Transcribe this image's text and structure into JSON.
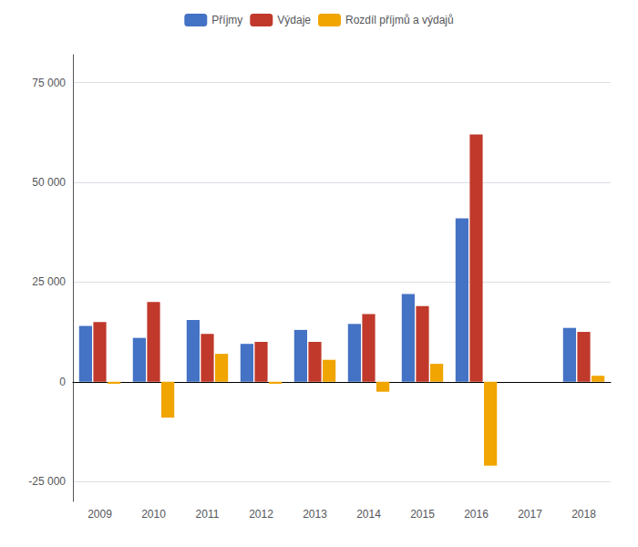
{
  "chart_data": {
    "type": "bar",
    "categories": [
      "2009",
      "2010",
      "2011",
      "2012",
      "2013",
      "2014",
      "2015",
      "2016",
      "2017",
      "2018"
    ],
    "series": [
      {
        "name": "Příjmy",
        "color": "#4472C4",
        "values": [
          14000,
          11000,
          15500,
          9500,
          13000,
          14500,
          22000,
          41000,
          0,
          13500
        ]
      },
      {
        "name": "Výdaje",
        "color": "#C0392B",
        "values": [
          15000,
          20000,
          12000,
          10000,
          10000,
          17000,
          19000,
          62000,
          0,
          12500
        ]
      },
      {
        "name": "Rozdíl příjmů a výdajů",
        "color": "#F0A500",
        "values": [
          -500,
          -9000,
          7000,
          -500,
          5500,
          -2500,
          4500,
          -21000,
          0,
          1500
        ]
      }
    ],
    "ylim": [
      -30000,
      82000
    ],
    "yticks": [
      {
        "value": -25000,
        "label": "-25 000"
      },
      0,
      {
        "value": 25000,
        "label": "25 000"
      },
      {
        "value": 50000,
        "label": "50 000"
      },
      {
        "value": 75000,
        "label": "75 000"
      }
    ],
    "grid": true,
    "legend": "upper center"
  }
}
